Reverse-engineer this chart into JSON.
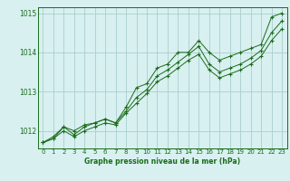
{
  "x": [
    0,
    1,
    2,
    3,
    4,
    5,
    6,
    7,
    8,
    9,
    10,
    11,
    12,
    13,
    14,
    15,
    16,
    17,
    18,
    19,
    20,
    21,
    22,
    23
  ],
  "line1": [
    1011.7,
    1011.8,
    1012.1,
    1011.9,
    1012.1,
    1012.2,
    1012.3,
    1012.2,
    1012.6,
    1013.1,
    1013.2,
    1013.6,
    1013.7,
    1014.0,
    1014.0,
    1014.3,
    1014.0,
    1013.8,
    1013.9,
    1014.0,
    1014.1,
    1014.2,
    1014.9,
    1015.0
  ],
  "line2": [
    1011.7,
    1011.85,
    1012.1,
    1012.0,
    1012.15,
    1012.2,
    1012.3,
    1012.2,
    1012.5,
    1012.85,
    1013.05,
    1013.4,
    1013.55,
    1013.75,
    1013.95,
    1014.15,
    1013.7,
    1013.5,
    1013.6,
    1013.7,
    1013.85,
    1014.05,
    1014.5,
    1014.8
  ],
  "line3": [
    1011.7,
    1011.8,
    1012.0,
    1011.85,
    1012.0,
    1012.1,
    1012.2,
    1012.15,
    1012.45,
    1012.7,
    1012.95,
    1013.25,
    1013.4,
    1013.6,
    1013.8,
    1013.95,
    1013.55,
    1013.35,
    1013.45,
    1013.55,
    1013.7,
    1013.9,
    1014.3,
    1014.6
  ],
  "line_color": "#1a6b1a",
  "bg_color": "#d8f0f0",
  "grid_color": "#aacece",
  "axis_color": "#1a6b1a",
  "xlabel": "Graphe pression niveau de la mer (hPa)",
  "ylim": [
    1011.55,
    1015.15
  ],
  "yticks": [
    1012,
    1013,
    1014,
    1015
  ],
  "xticks": [
    0,
    1,
    2,
    3,
    4,
    5,
    6,
    7,
    8,
    9,
    10,
    11,
    12,
    13,
    14,
    15,
    16,
    17,
    18,
    19,
    20,
    21,
    22,
    23
  ]
}
